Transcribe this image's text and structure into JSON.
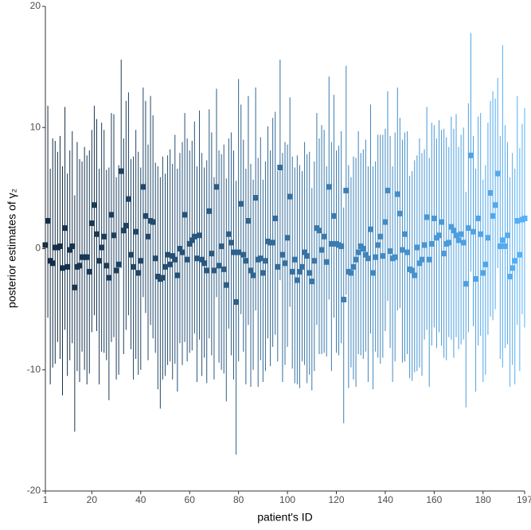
{
  "chart_data": {
    "type": "errorbar",
    "xlabel": "patient's ID",
    "ylabel": "posterior estimates of γ₂",
    "xlim": [
      1,
      197
    ],
    "xticks": [
      1,
      20,
      40,
      60,
      80,
      100,
      120,
      140,
      160,
      180,
      197
    ],
    "ylim": [
      -20,
      20
    ],
    "yticks": [
      -20,
      -10,
      0,
      10,
      20
    ],
    "color_low": "#132B43",
    "color_high": "#56B1F7",
    "x": [
      1,
      2,
      3,
      4,
      5,
      6,
      7,
      8,
      9,
      10,
      11,
      12,
      13,
      14,
      15,
      16,
      17,
      18,
      19,
      20,
      21,
      22,
      23,
      24,
      25,
      26,
      27,
      28,
      29,
      30,
      31,
      32,
      33,
      34,
      35,
      36,
      37,
      38,
      39,
      40,
      41,
      42,
      43,
      44,
      45,
      46,
      47,
      48,
      49,
      50,
      51,
      52,
      53,
      54,
      55,
      56,
      57,
      58,
      59,
      60,
      61,
      62,
      63,
      64,
      65,
      66,
      67,
      68,
      69,
      70,
      71,
      72,
      73,
      74,
      75,
      76,
      77,
      78,
      79,
      80,
      81,
      82,
      83,
      84,
      85,
      86,
      87,
      88,
      89,
      90,
      91,
      92,
      93,
      94,
      95,
      96,
      97,
      98,
      99,
      100,
      101,
      102,
      103,
      104,
      105,
      106,
      107,
      108,
      109,
      110,
      111,
      112,
      113,
      114,
      115,
      116,
      117,
      118,
      119,
      120,
      121,
      122,
      123,
      124,
      125,
      126,
      127,
      128,
      129,
      130,
      131,
      132,
      133,
      134,
      135,
      136,
      137,
      138,
      139,
      140,
      141,
      142,
      143,
      144,
      145,
      146,
      147,
      148,
      149,
      150,
      151,
      152,
      153,
      154,
      155,
      156,
      157,
      158,
      159,
      160,
      161,
      162,
      163,
      164,
      165,
      166,
      167,
      168,
      169,
      170,
      171,
      172,
      173,
      174,
      175,
      176,
      177,
      178,
      179,
      180,
      181,
      182,
      183,
      184,
      185,
      186,
      187,
      188,
      189,
      190,
      191,
      192,
      193,
      194,
      195,
      196,
      197
    ],
    "values": [
      0.3,
      2.3,
      -1,
      -1.2,
      0.1,
      0.1,
      0.2,
      -1.6,
      1.7,
      -1.5,
      -0.1,
      0.2,
      -3.2,
      -1.5,
      -1.4,
      -0.7,
      -0.7,
      -0.7,
      -1.9,
      2.1,
      3.6,
      1.2,
      -1.0,
      0.1,
      1.0,
      -1.4,
      -2.4,
      2.8,
      1.1,
      -1.8,
      -1.3,
      6.4,
      1.5,
      1.9,
      4.1,
      -0.5,
      -1.5,
      1.4,
      -2.0,
      -1.0,
      5.1,
      2.7,
      1.0,
      2.3,
      2.2,
      -0.8,
      -2.3,
      -2.5,
      -2.4,
      -1.5,
      -0.5,
      -1.3,
      -0.6,
      -0.9,
      -2.2,
      0,
      -0.3,
      2.8,
      -0.9,
      0.4,
      0.7,
      1.0,
      -0.8,
      1.1,
      -0.9,
      -1.2,
      -1.8,
      3.1,
      -0.4,
      -1.8,
      5.1,
      -1.4,
      0.2,
      -1.7,
      -3.0,
      1.2,
      0.5,
      -0.3,
      -4.4,
      -0.3,
      3.7,
      -0.5,
      -1.0,
      2.3,
      -1.8,
      -2.2,
      4.2,
      -0.9,
      -0.8,
      -2.0,
      -1.0,
      0.6,
      0.5,
      0.5,
      2.5,
      -1.5,
      6.7,
      -0.5,
      -1.2,
      0.9,
      4.3,
      -1.9,
      -0.9,
      -2.6,
      -1.9,
      -1.5,
      -0.3,
      -0.6,
      -2.0,
      -2.7,
      -1.0,
      1.7,
      1.5,
      -0.1,
      1.0,
      -1.1,
      5.1,
      0.4,
      2.7,
      0.4,
      0.3,
      0.2,
      -4.2,
      4.8,
      -1.9,
      -2.0,
      -1.5,
      -0.9,
      -0.3,
      0.2,
      0.0,
      -0.5,
      -0.8,
      1.6,
      -2.0,
      -0.7,
      0.3,
      1.0,
      -0.6,
      2.2,
      4.8,
      -0.2,
      -0.8,
      -0.7,
      4.5,
      2.9,
      -0.1,
      1.2,
      -0.3,
      -1.7,
      -1.8,
      -2.2,
      0.1,
      -1.2,
      -0.9,
      0.3,
      2.6,
      -0.9,
      0.4,
      2.5,
      0.9,
      1.1,
      2.2,
      -0.4,
      0.4,
      0.5,
      1.8,
      1.5,
      1.1,
      0.7,
      1.2,
      0.5,
      -2.9,
      1.7,
      7.7,
      1.4,
      -2.5,
      2.5,
      1.2,
      -2.0,
      -1.3,
      0.9,
      4.6,
      2.7,
      3.6,
      6.2,
      0.2,
      0.7,
      0.2,
      1.1,
      -2.3,
      -1.6,
      -1.0,
      2.3,
      -0.5,
      2.4,
      2.5
    ],
    "upper": [
      8.5,
      11.8,
      6.6,
      9.1,
      8.9,
      8.0,
      9.3,
      6.8,
      11.7,
      6.2,
      8.1,
      9.7,
      4.4,
      8.8,
      7.4,
      7.2,
      8.4,
      7.7,
      8.1,
      9.8,
      11.8,
      10.7,
      6.6,
      10.4,
      9.8,
      6.5,
      6.7,
      11.2,
      11.1,
      5.9,
      6.9,
      15.6,
      9.1,
      12.2,
      12.9,
      7.4,
      7.6,
      9.8,
      8.0,
      6.7,
      13.3,
      12.2,
      8.6,
      12.6,
      11.0,
      7.1,
      6.8,
      5.9,
      7.6,
      6.2,
      7.7,
      8.2,
      7.0,
      9.4,
      6.6,
      7.9,
      8.8,
      11.2,
      9.1,
      8.1,
      8.9,
      10.5,
      6.8,
      11.4,
      7.9,
      6.7,
      7.3,
      11.5,
      9.6,
      5.9,
      13.2,
      8.1,
      7.8,
      8.6,
      5.8,
      9.1,
      9.6,
      8.1,
      5.6,
      14.0,
      11.9,
      9.0,
      6.6,
      12.6,
      7.0,
      5.7,
      13.3,
      7.5,
      9.2,
      5.7,
      7.2,
      10.1,
      8.1,
      10.8,
      11.3,
      6.4,
      15.6,
      7.9,
      8.8,
      8.6,
      12.5,
      7.6,
      6.7,
      7.7,
      6.9,
      6.4,
      8.8,
      7.8,
      8.0,
      5.0,
      7.2,
      11.2,
      9.1,
      10.2,
      9.8,
      6.8,
      14.2,
      8.8,
      12.7,
      8.1,
      8.5,
      9.7,
      3.4,
      15.1,
      6.9,
      5.9,
      7.6,
      7.5,
      9.7,
      7.9,
      8.2,
      9.0,
      6.8,
      11.9,
      6.8,
      7.2,
      9.4,
      9.4,
      9.4,
      9.9,
      13.0,
      9.3,
      6.8,
      9.6,
      13.3,
      10.8,
      9.0,
      9.6,
      9.7,
      6.0,
      6.4,
      7.3,
      7.7,
      9.1,
      7.9,
      8.2,
      11.7,
      7.5,
      10.4,
      10.2,
      9.1,
      10.6,
      9.8,
      9.9,
      9.2,
      8.4,
      10.9,
      9.9,
      11.1,
      8.4,
      9.4,
      10.0,
      4.7,
      12.0,
      17.8,
      9.3,
      6.6,
      10.9,
      11.2,
      5.7,
      6.9,
      10.4,
      12.2,
      13.0,
      12.4,
      14.1,
      9.3,
      16.8,
      10.2,
      8.8,
      5.9,
      7.9,
      6.6,
      12.6,
      8.3,
      10.3,
      11.6
    ],
    "lower": [
      -8.8,
      -5.7,
      -11.2,
      -9.8,
      -9.5,
      -7.7,
      -9.1,
      -12.1,
      -6.7,
      -10.5,
      -9.2,
      -7.8,
      -15.1,
      -10.1,
      -11.0,
      -8.5,
      -10.0,
      -11.2,
      -10.3,
      -6.9,
      -5.5,
      -6.8,
      -11.2,
      -8.5,
      -8.6,
      -9.2,
      -12.5,
      -7.7,
      -7.3,
      -10.8,
      -10.4,
      -1.6,
      -8.7,
      -6.7,
      -5.5,
      -8.3,
      -10.8,
      -9.1,
      -10.4,
      -10.0,
      -4.0,
      -5.3,
      -9.2,
      -6.3,
      -7.4,
      -8.6,
      -11.6,
      -13.2,
      -10.8,
      -10.5,
      -9.6,
      -9.3,
      -10.8,
      -9.5,
      -11.8,
      -7.8,
      -9.6,
      -7.7,
      -9.3,
      -8.6,
      -8.4,
      -7.0,
      -11.0,
      -7.5,
      -10.5,
      -9.0,
      -11.1,
      -7.4,
      -8.8,
      -10.8,
      -4.0,
      -9.4,
      -10.0,
      -10.3,
      -12.6,
      -6.6,
      -8.8,
      -10.8,
      -17.0,
      -9.3,
      -5.4,
      -8.5,
      -11.2,
      -6.3,
      -11.4,
      -10.0,
      -5.1,
      -11.4,
      -9.2,
      -11.0,
      -10.1,
      -7.4,
      -9.7,
      -8.1,
      -7.1,
      -9.3,
      -2.6,
      -11.0,
      -9.6,
      -8.1,
      -4.8,
      -9.9,
      -11.1,
      -11.2,
      -11.5,
      -9.3,
      -9.6,
      -11.1,
      -10.4,
      -11.7,
      -10.1,
      -6.3,
      -8.7,
      -8.7,
      -8.6,
      -8.9,
      -4.2,
      -10.1,
      -5.7,
      -8.6,
      -8.8,
      -7.8,
      -14.4,
      -3.8,
      -11.5,
      -9.8,
      -10.8,
      -11.4,
      -8.7,
      -8.8,
      -9.1,
      -8.5,
      -11.0,
      -7.0,
      -11.6,
      -8.5,
      -9.0,
      -9.5,
      -9.0,
      -6.8,
      -4.3,
      -8.2,
      -11.0,
      -9.3,
      -5.1,
      -4.9,
      -9.4,
      -9.3,
      -8.7,
      -10.7,
      -10.9,
      -10.2,
      -10.1,
      -9.8,
      -10.5,
      -7.5,
      -6.7,
      -11.4,
      -8.0,
      -6.5,
      -8.2,
      -6.9,
      -8.0,
      -9.0,
      -9.2,
      -7.3,
      -7.5,
      -9.0,
      -7.3,
      -8.3,
      -7.9,
      -7.5,
      -13.1,
      -6.9,
      -1.9,
      -6.4,
      -11.8,
      -8.0,
      -7.2,
      -11.0,
      -10.4,
      -7.1,
      -5.6,
      -5.9,
      -5.0,
      -1.6,
      -9.1,
      -9.8,
      -8.2,
      -7.9,
      -11.4,
      -9.6,
      -11.2,
      -6.3,
      -10.1,
      -5.4,
      -6.5
    ]
  }
}
